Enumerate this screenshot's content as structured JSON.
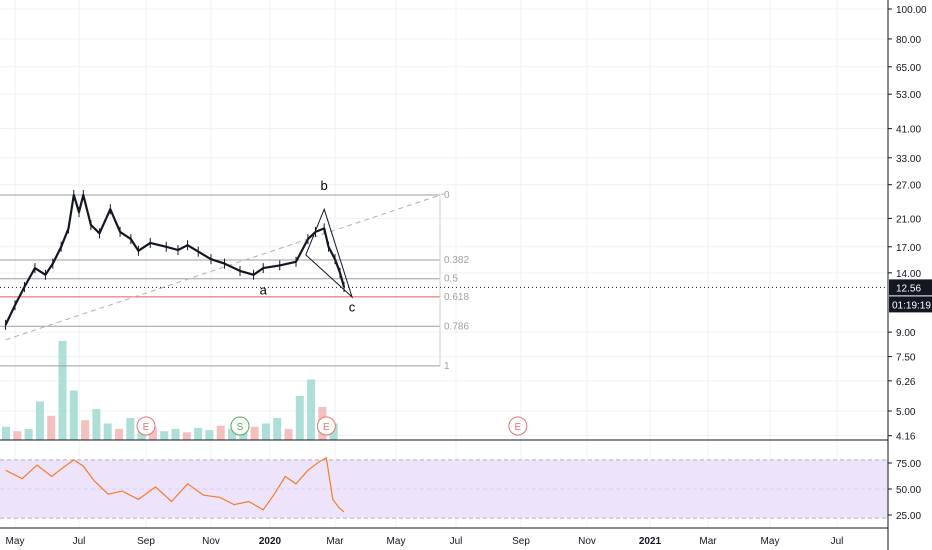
{
  "chart_data": [
    {
      "type": "candlestick",
      "scale": "log",
      "ylim": [
        4.1,
        106
      ],
      "grid": true,
      "y_ticks": [
        "100.00",
        "80.00",
        "65.00",
        "53.00",
        "41.00",
        "33.00",
        "27.00",
        "21.00",
        "17.00",
        "14.00",
        "9.00",
        "7.50",
        "6.26",
        "5.00",
        "4.16"
      ],
      "x_ticks": [
        "May",
        "Jul",
        "Sep",
        "Nov",
        "2020",
        "Mar",
        "May",
        "Jul",
        "Sep",
        "Nov",
        "2021",
        "Mar",
        "May",
        "Jul"
      ],
      "price_series": [
        [
          "2019-04-22",
          9.5
        ],
        [
          "2019-05-01",
          11.0
        ],
        [
          "2019-05-10",
          12.6
        ],
        [
          "2019-05-20",
          14.5
        ],
        [
          "2019-05-30",
          13.8
        ],
        [
          "2019-06-06",
          15.0
        ],
        [
          "2019-06-14",
          17.0
        ],
        [
          "2019-06-21",
          19.5
        ],
        [
          "2019-06-26",
          25.0
        ],
        [
          "2019-07-01",
          22.0
        ],
        [
          "2019-07-05",
          25.0
        ],
        [
          "2019-07-12",
          20.0
        ],
        [
          "2019-07-20",
          18.8
        ],
        [
          "2019-07-30",
          22.5
        ],
        [
          "2019-08-08",
          19.0
        ],
        [
          "2019-08-18",
          18.0
        ],
        [
          "2019-08-25",
          16.5
        ],
        [
          "2019-09-05",
          17.5
        ],
        [
          "2019-09-20",
          17.0
        ],
        [
          "2019-10-01",
          16.6
        ],
        [
          "2019-10-10",
          17.2
        ],
        [
          "2019-10-20",
          16.4
        ],
        [
          "2019-11-01",
          15.5
        ],
        [
          "2019-11-15",
          15.0
        ],
        [
          "2019-12-01",
          14.2
        ],
        [
          "2019-12-15",
          13.8
        ],
        [
          "2019-12-25",
          14.5
        ],
        [
          "2020-01-10",
          14.8
        ],
        [
          "2020-01-25",
          15.2
        ],
        [
          "2020-02-05",
          18.0
        ],
        [
          "2020-02-12",
          19.0
        ],
        [
          "2020-02-20",
          19.5
        ],
        [
          "2020-02-24",
          17.0
        ],
        [
          "2020-03-01",
          15.5
        ],
        [
          "2020-03-06",
          14.0
        ],
        [
          "2020-03-10",
          12.6
        ]
      ],
      "last_price": "12.56",
      "countdown": "01:19:19",
      "fibonacci": [
        {
          "level": "0",
          "price": 25.0
        },
        {
          "level": "0.382",
          "price": 15.4
        },
        {
          "level": "0.5",
          "price": 13.4
        },
        {
          "level": "0.618",
          "price": 11.7
        },
        {
          "level": "0.786",
          "price": 9.4
        },
        {
          "level": "1",
          "price": 7.0
        }
      ],
      "trend_line": [
        [
          "2019-04-22",
          8.5
        ],
        [
          "2020-06-20",
          25.3
        ]
      ],
      "wedge": [
        [
          "2020-02-20",
          22.5
        ],
        [
          "2020-03-18",
          11.7
        ],
        [
          "2020-02-03",
          16.0
        ]
      ],
      "wave_labels": [
        {
          "text": "a",
          "date": "2019-12-25",
          "price": 11.9
        },
        {
          "text": "b",
          "date": "2020-02-20",
          "price": 26.0
        },
        {
          "text": "c",
          "date": "2020-03-18",
          "price": 10.5
        }
      ],
      "volume": [
        0.12,
        0.08,
        0.1,
        0.35,
        0.22,
        0.9,
        0.45,
        0.18,
        0.28,
        0.15,
        0.1,
        0.2,
        0.09,
        0.12,
        0.08,
        0.1,
        0.07,
        0.11,
        0.09,
        0.13,
        0.1,
        0.08,
        0.12,
        0.15,
        0.2,
        0.1,
        0.4,
        0.55,
        0.3,
        0.15
      ],
      "events": [
        {
          "letter": "E",
          "date": "2019-09-01",
          "color": "#e57373"
        },
        {
          "letter": "S",
          "date": "2019-12-01",
          "color": "#4caf50"
        },
        {
          "letter": "E",
          "date": "2020-02-22",
          "color": "#e57373"
        },
        {
          "letter": "E",
          "date": "2020-08-29",
          "color": "#e57373"
        }
      ]
    },
    {
      "type": "line",
      "indicator": "RSI",
      "ylim": [
        20,
        85
      ],
      "y_ticks": [
        "75.00",
        "50.00",
        "25.00"
      ],
      "bands": [
        70,
        30
      ],
      "values": [
        [
          "2019-04-22",
          68
        ],
        [
          "2019-05-08",
          60
        ],
        [
          "2019-05-22",
          73
        ],
        [
          "2019-06-05",
          62
        ],
        [
          "2019-06-15",
          70
        ],
        [
          "2019-06-26",
          78
        ],
        [
          "2019-07-05",
          72
        ],
        [
          "2019-07-15",
          58
        ],
        [
          "2019-07-28",
          45
        ],
        [
          "2019-08-10",
          48
        ],
        [
          "2019-08-25",
          40
        ],
        [
          "2019-09-10",
          52
        ],
        [
          "2019-09-25",
          38
        ],
        [
          "2019-10-10",
          55
        ],
        [
          "2019-10-25",
          44
        ],
        [
          "2019-11-10",
          42
        ],
        [
          "2019-11-25",
          35
        ],
        [
          "2019-12-10",
          38
        ],
        [
          "2019-12-25",
          30
        ],
        [
          "2020-01-05",
          45
        ],
        [
          "2020-01-15",
          62
        ],
        [
          "2020-01-25",
          55
        ],
        [
          "2020-02-05",
          68
        ],
        [
          "2020-02-15",
          76
        ],
        [
          "2020-02-22",
          80
        ],
        [
          "2020-02-28",
          40
        ],
        [
          "2020-03-05",
          32
        ],
        [
          "2020-03-10",
          28
        ]
      ]
    }
  ]
}
